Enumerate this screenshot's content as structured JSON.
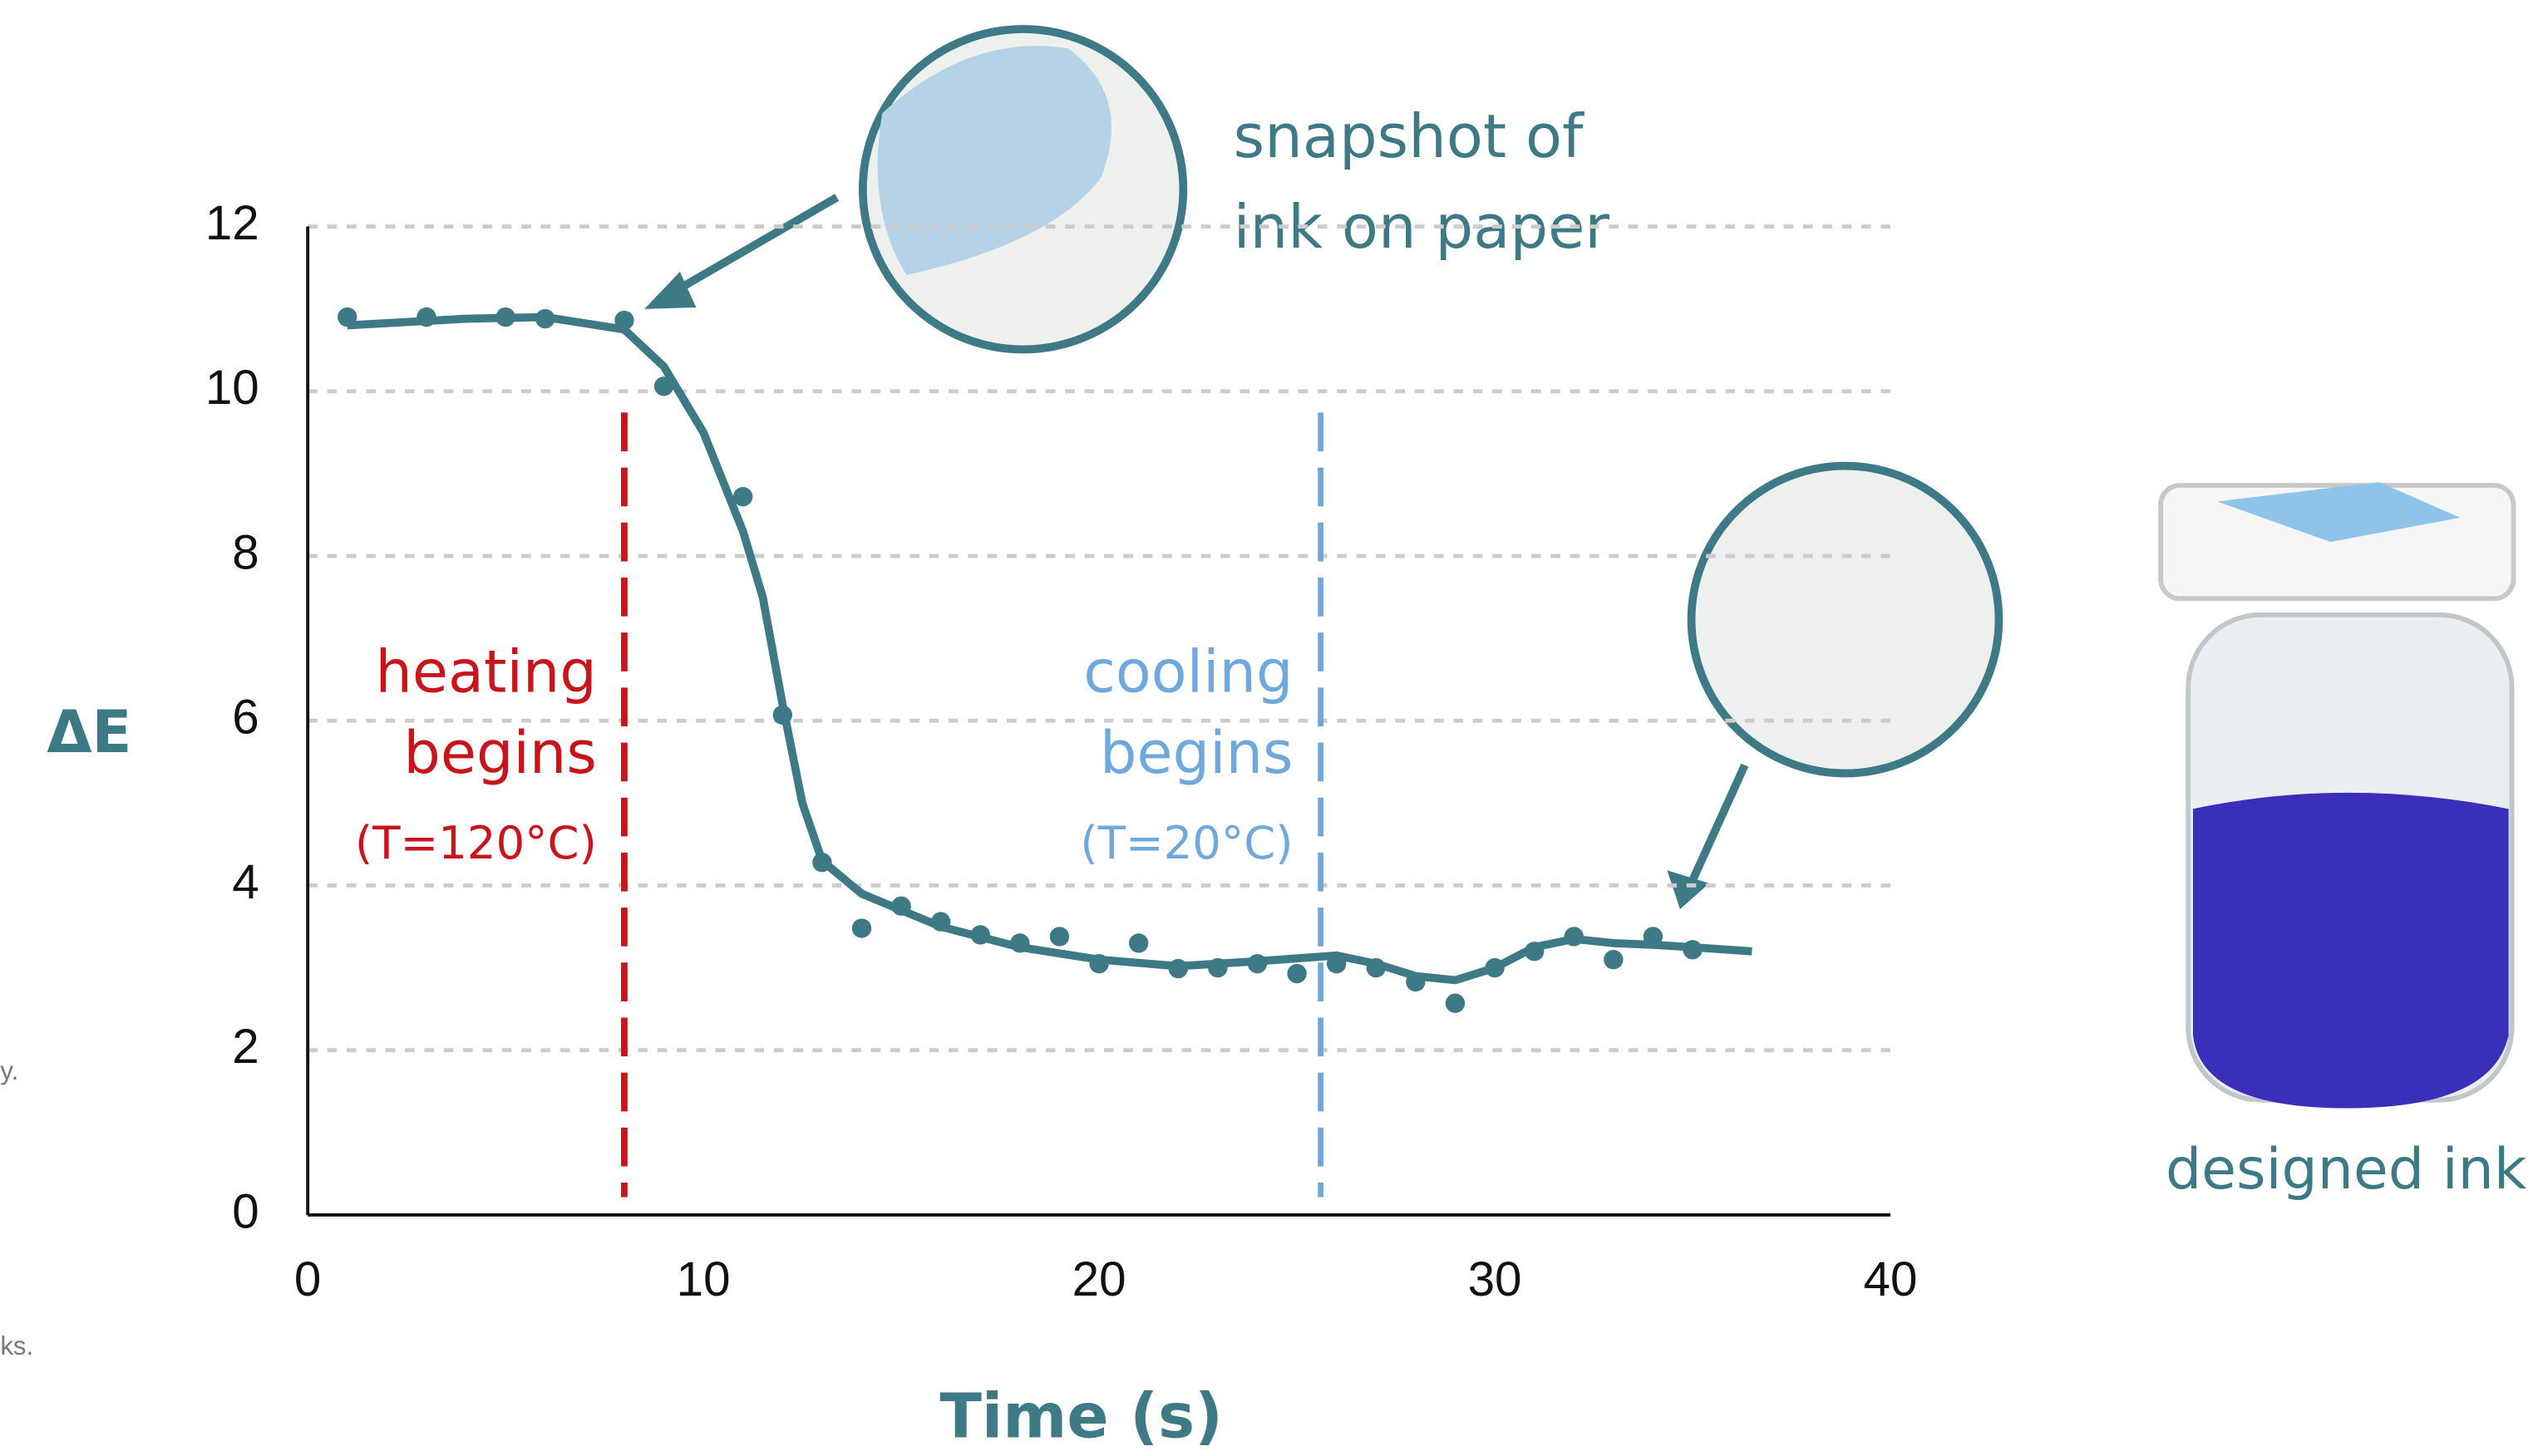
{
  "chart_data": {
    "type": "scatter",
    "y_label": "ΔE",
    "x_label": "Time (s)",
    "xlim": [
      0,
      40
    ],
    "xticks": [
      0,
      10,
      20,
      30,
      40
    ],
    "ylim": [
      0,
      12
    ],
    "yticks": [
      0,
      2,
      4,
      6,
      8,
      10,
      12
    ],
    "grid": true,
    "color": "#3e7a85",
    "x": [
      1,
      3,
      5,
      6,
      8,
      9,
      11,
      12,
      13,
      14,
      15,
      16,
      17,
      18,
      19,
      20,
      21,
      22,
      23,
      24,
      25,
      26,
      27,
      28,
      29,
      30,
      31,
      32,
      33,
      34,
      35
    ],
    "values": [
      10.9,
      10.9,
      10.9,
      10.88,
      10.86,
      10.06,
      8.72,
      6.07,
      4.28,
      3.48,
      3.75,
      3.56,
      3.4,
      3.3,
      3.38,
      3.05,
      3.3,
      2.99,
      3.0,
      3.05,
      2.93,
      3.05,
      3.0,
      2.83,
      2.57,
      3.0,
      3.2,
      3.38,
      3.1,
      3.38,
      3.22
    ],
    "fit": {
      "x": [
        1,
        4,
        6,
        8,
        9,
        10,
        11,
        11.5,
        12,
        12.5,
        13,
        14,
        16,
        18,
        20,
        22,
        24,
        26,
        27,
        28,
        29,
        30,
        31,
        32,
        33,
        34,
        35,
        36.5
      ],
      "values": [
        10.8,
        10.88,
        10.9,
        10.75,
        10.3,
        9.5,
        8.3,
        7.5,
        6.2,
        5.0,
        4.3,
        3.9,
        3.5,
        3.25,
        3.1,
        3.02,
        3.08,
        3.15,
        3.05,
        2.9,
        2.85,
        3.0,
        3.25,
        3.35,
        3.3,
        3.28,
        3.25,
        3.2
      ]
    },
    "vlines": [
      {
        "x": 8,
        "color": "#c8151b",
        "label": [
          "heating",
          "begins",
          "(T=120°C)"
        ]
      },
      {
        "x": 25.6,
        "color": "#6fa8dc",
        "label": [
          "cooling",
          "begins",
          "(T=20°C)"
        ]
      }
    ],
    "annotations": {
      "snapshot": [
        "snapshot of",
        "ink on paper"
      ],
      "jar": "designed ink"
    },
    "fragments": [
      "y.",
      "ks."
    ]
  }
}
